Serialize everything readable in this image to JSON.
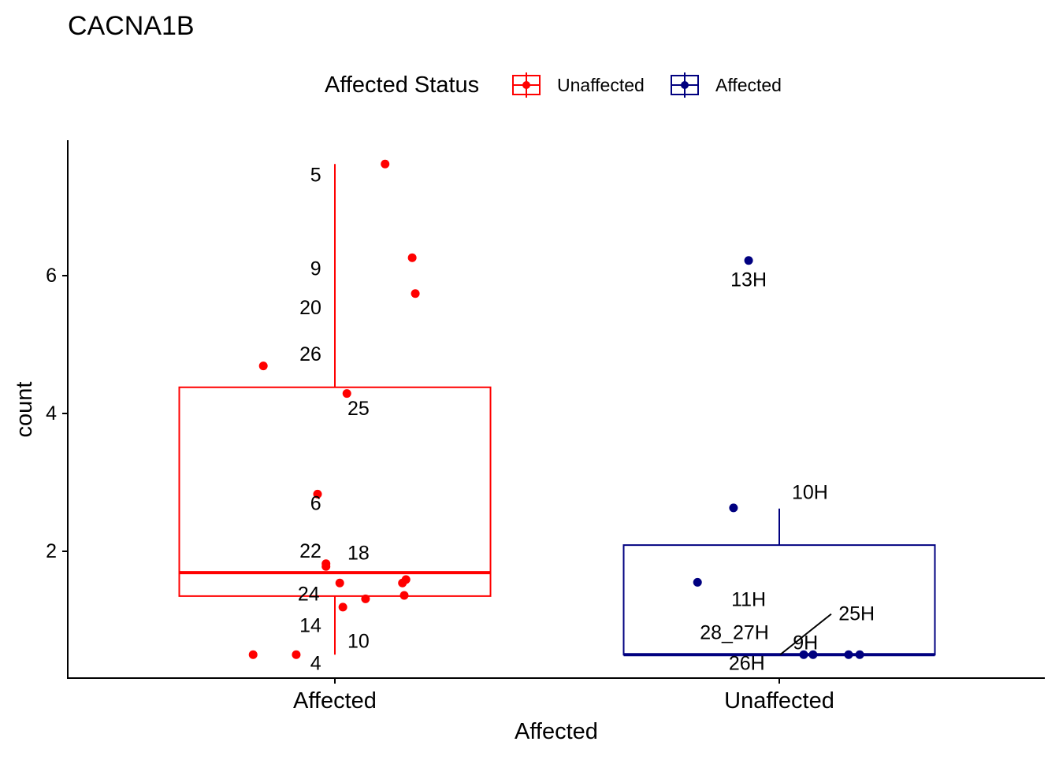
{
  "chart_data": {
    "type": "boxplot",
    "title": "CACNA1B",
    "xlabel": "Affected",
    "ylabel": "count",
    "categories": [
      "Affected",
      "Unaffected"
    ],
    "ylim": [
      0.16,
      7.97
    ],
    "yticks": [
      2,
      4,
      6
    ],
    "grid": false,
    "legend": {
      "title": "Affected Status",
      "placement": "top",
      "entries": [
        {
          "label": "Unaffected",
          "color": "#FF0000"
        },
        {
          "label": "Affected",
          "color": "#000080"
        }
      ]
    },
    "boxes": [
      {
        "category": "Affected",
        "color": "#FF0000",
        "q1": 1.35,
        "median": 1.69,
        "q3": 4.38,
        "whisker_low": 0.5,
        "whisker_high": 7.62
      },
      {
        "category": "Unaffected",
        "color": "#000080",
        "q1": 0.5,
        "median": 0.5,
        "q3": 2.09,
        "whisker_low": 0.5,
        "whisker_high": 2.62
      }
    ],
    "points": [
      {
        "x": 1.113,
        "y": 7.62,
        "color": "#FF0000"
      },
      {
        "x": 1.174,
        "y": 6.26,
        "color": "#FF0000"
      },
      {
        "x": 1.181,
        "y": 5.74,
        "color": "#FF0000"
      },
      {
        "x": 0.839,
        "y": 4.69,
        "color": "#FF0000"
      },
      {
        "x": 1.027,
        "y": 4.29,
        "color": "#FF0000"
      },
      {
        "x": 0.961,
        "y": 2.83,
        "color": "#FF0000"
      },
      {
        "x": 0.98,
        "y": 1.82,
        "color": "#FF0000"
      },
      {
        "x": 0.98,
        "y": 1.78,
        "color": "#FF0000"
      },
      {
        "x": 1.011,
        "y": 1.54,
        "color": "#FF0000"
      },
      {
        "x": 1.16,
        "y": 1.59,
        "color": "#FF0000"
      },
      {
        "x": 1.152,
        "y": 1.54,
        "color": "#FF0000"
      },
      {
        "x": 1.156,
        "y": 1.36,
        "color": "#FF0000"
      },
      {
        "x": 1.069,
        "y": 1.31,
        "color": "#FF0000"
      },
      {
        "x": 1.018,
        "y": 1.19,
        "color": "#FF0000"
      },
      {
        "x": 0.816,
        "y": 0.5,
        "color": "#FF0000"
      },
      {
        "x": 0.913,
        "y": 0.5,
        "color": "#FF0000"
      },
      {
        "x": 1.931,
        "y": 6.22,
        "color": "#000080"
      },
      {
        "x": 1.897,
        "y": 2.63,
        "color": "#000080"
      },
      {
        "x": 1.816,
        "y": 1.55,
        "color": "#000080"
      },
      {
        "x": 2.055,
        "y": 0.5,
        "color": "#000080"
      },
      {
        "x": 2.076,
        "y": 0.5,
        "color": "#000080"
      },
      {
        "x": 2.156,
        "y": 0.5,
        "color": "#000080"
      },
      {
        "x": 2.181,
        "y": 0.5,
        "color": "#000080"
      }
    ],
    "labels": [
      {
        "text": "5",
        "x": 0.957,
        "y": 7.46
      },
      {
        "text": "9",
        "x": 0.957,
        "y": 6.1
      },
      {
        "text": "20",
        "x": 0.945,
        "y": 5.53
      },
      {
        "text": "26",
        "x": 0.945,
        "y": 4.86
      },
      {
        "text": "25",
        "x": 1.053,
        "y": 4.07
      },
      {
        "text": "6",
        "x": 0.957,
        "y": 2.69
      },
      {
        "text": "22",
        "x": 0.945,
        "y": 2.0
      },
      {
        "text": "18",
        "x": 1.053,
        "y": 1.97
      },
      {
        "text": "24",
        "x": 0.941,
        "y": 1.38
      },
      {
        "text": "14",
        "x": 0.945,
        "y": 0.92
      },
      {
        "text": "10",
        "x": 1.053,
        "y": 0.69
      },
      {
        "text": "4",
        "x": 0.957,
        "y": 0.37
      },
      {
        "text": "13H",
        "x": 1.931,
        "y": 5.94
      },
      {
        "text": "10H",
        "x": 2.069,
        "y": 2.85
      },
      {
        "text": "11H",
        "x": 1.931,
        "y": 1.3
      },
      {
        "text": "28_27H",
        "x": 1.899,
        "y": 0.82
      },
      {
        "text": "9H",
        "x": 2.059,
        "y": 0.67
      },
      {
        "text": "25H",
        "x": 2.174,
        "y": 1.09,
        "leader": {
          "x": 2.002,
          "y": 0.5,
          "x2": 2.117,
          "y2": 1.09
        }
      },
      {
        "text": "26H",
        "x": 1.927,
        "y": 0.37
      }
    ]
  }
}
